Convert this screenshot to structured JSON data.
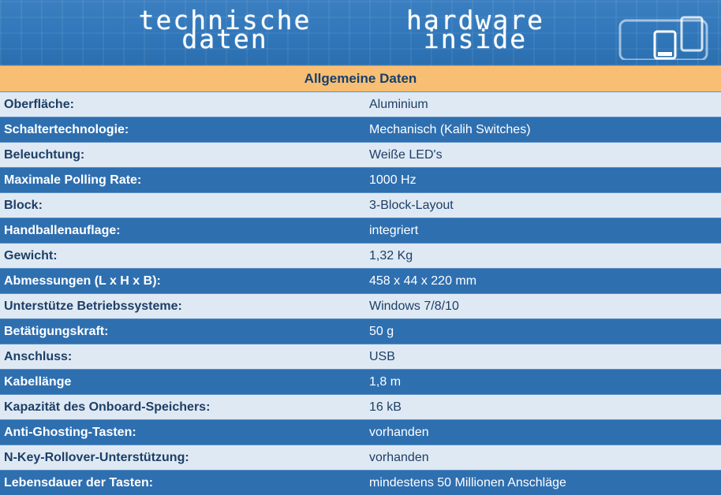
{
  "banner": {
    "logo_left_line1": "technische",
    "logo_left_line2": "daten",
    "logo_right_line1": "hardware",
    "logo_right_line2": "inside"
  },
  "table": {
    "header": "Allgemeine Daten",
    "rows": [
      {
        "label": "Oberfläche:",
        "value": "Aluminium"
      },
      {
        "label": "Schaltertechnologie:",
        "value": "Mechanisch (Kalih Switches)"
      },
      {
        "label": "Beleuchtung:",
        "value": "Weiße LED's"
      },
      {
        "label": "Maximale Polling Rate:",
        "value": "1000 Hz"
      },
      {
        "label": "Block:",
        "value": "3-Block-Layout"
      },
      {
        "label": "Handballenauflage:",
        "value": "integriert"
      },
      {
        "label": "Gewicht:",
        "value": "1,32 Kg"
      },
      {
        "label": "Abmessungen (L x H x B):",
        "value": "458 x 44 x 220 mm"
      },
      {
        "label": "Unterstütze Betriebssysteme:",
        "value": "Windows 7/8/10"
      },
      {
        "label": "Betätigungskraft:",
        "value": "50 g"
      },
      {
        "label": "Anschluss:",
        "value": "USB"
      },
      {
        "label": "Kabellänge",
        "value": "1,8 m"
      },
      {
        "label": "Kapazität des Onboard-Speichers:",
        "value": "16 kB"
      },
      {
        "label": "Anti-Ghosting-Tasten:",
        "value": "vorhanden"
      },
      {
        "label": "N-Key-Rollover-Unterstützung:",
        "value": "vorhanden"
      },
      {
        "label": "Lebensdauer der Tasten:",
        "value": "mindestens 50 Millionen Anschläge"
      }
    ]
  },
  "colors": {
    "header_bg": "#f8bf74",
    "row_light": "#dfe9f4",
    "row_dark": "#2e6fb0",
    "text_dark": "#1d3f66"
  },
  "icons": {
    "banner_device": "device-icon"
  }
}
